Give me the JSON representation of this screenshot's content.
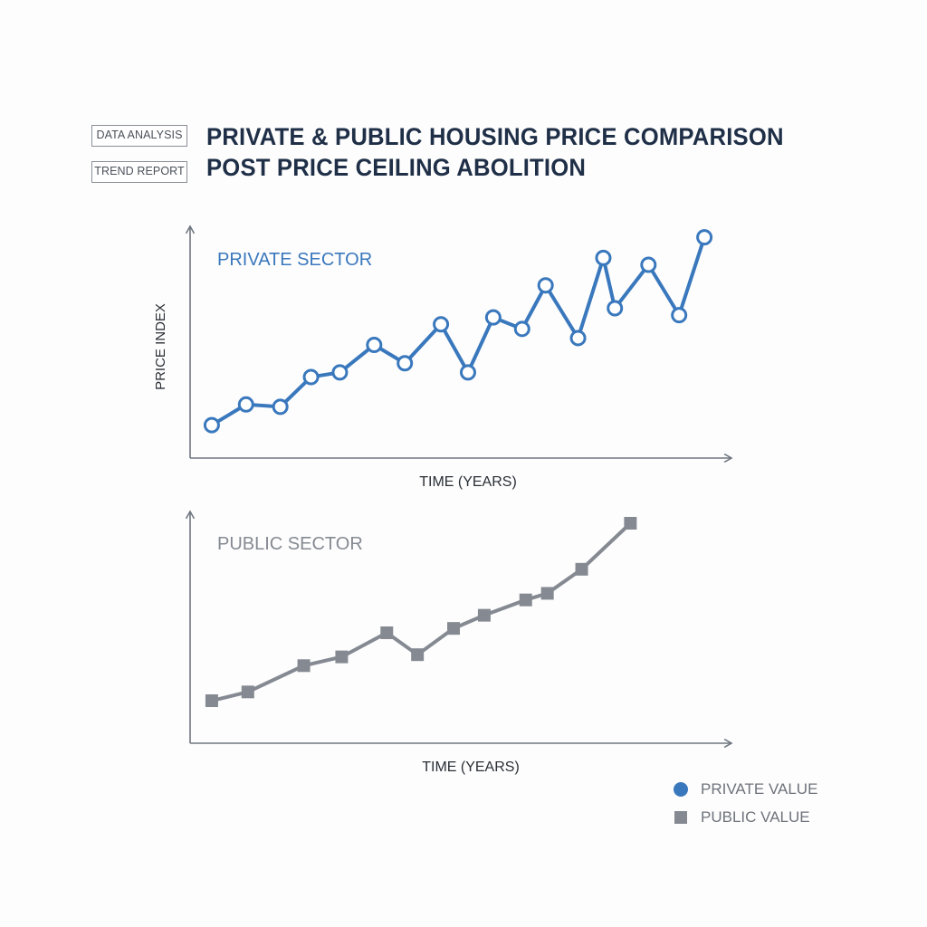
{
  "tags": {
    "primary": "DATA ANALYSIS",
    "secondary": "TREND REPORT"
  },
  "title": {
    "line1": "PRIVATE & PUBLIC HOUSING PRICE COMPARISON",
    "line2": "POST PRICE CEILING ABOLITION"
  },
  "legend": {
    "private": "PRIVATE VALUE",
    "public": "PUBLIC VALUE"
  },
  "colors": {
    "private": "#3a78bd",
    "public": "#858a92",
    "axis": "#6f7680"
  },
  "chart_data": [
    {
      "type": "line",
      "title": "PRIVATE SECTOR",
      "xlabel": "TIME (YEARS)",
      "ylabel": "PRICE INDEX",
      "ylim": [
        0,
        100
      ],
      "grid": false,
      "marker": "circle",
      "series": [
        {
          "name": "PRIVATE VALUE",
          "x": [
            0.6,
            1.55,
            2.5,
            3.35,
            4.15,
            5.1,
            5.95,
            6.95,
            7.7,
            8.4,
            9.2,
            9.85,
            10.75,
            11.45,
            11.77,
            12.7,
            13.55,
            14.25
          ],
          "y": [
            14,
            23,
            22,
            35,
            37,
            49,
            41,
            58,
            37,
            61,
            56,
            75,
            52,
            87,
            65,
            84,
            62,
            96
          ]
        }
      ]
    },
    {
      "type": "line",
      "title": "PUBLIC SECTOR",
      "xlabel": "TIME (YEARS)",
      "ylabel": "",
      "ylim": [
        0,
        100
      ],
      "grid": false,
      "marker": "square",
      "series": [
        {
          "name": "PUBLIC VALUE",
          "x": [
            0.6,
            1.6,
            3.15,
            4.2,
            5.45,
            6.3,
            7.3,
            8.15,
            9.3,
            9.9,
            10.85,
            12.2
          ],
          "y": [
            19,
            23,
            35,
            39,
            50,
            40,
            52,
            58,
            65,
            68,
            79,
            100
          ]
        }
      ]
    }
  ]
}
